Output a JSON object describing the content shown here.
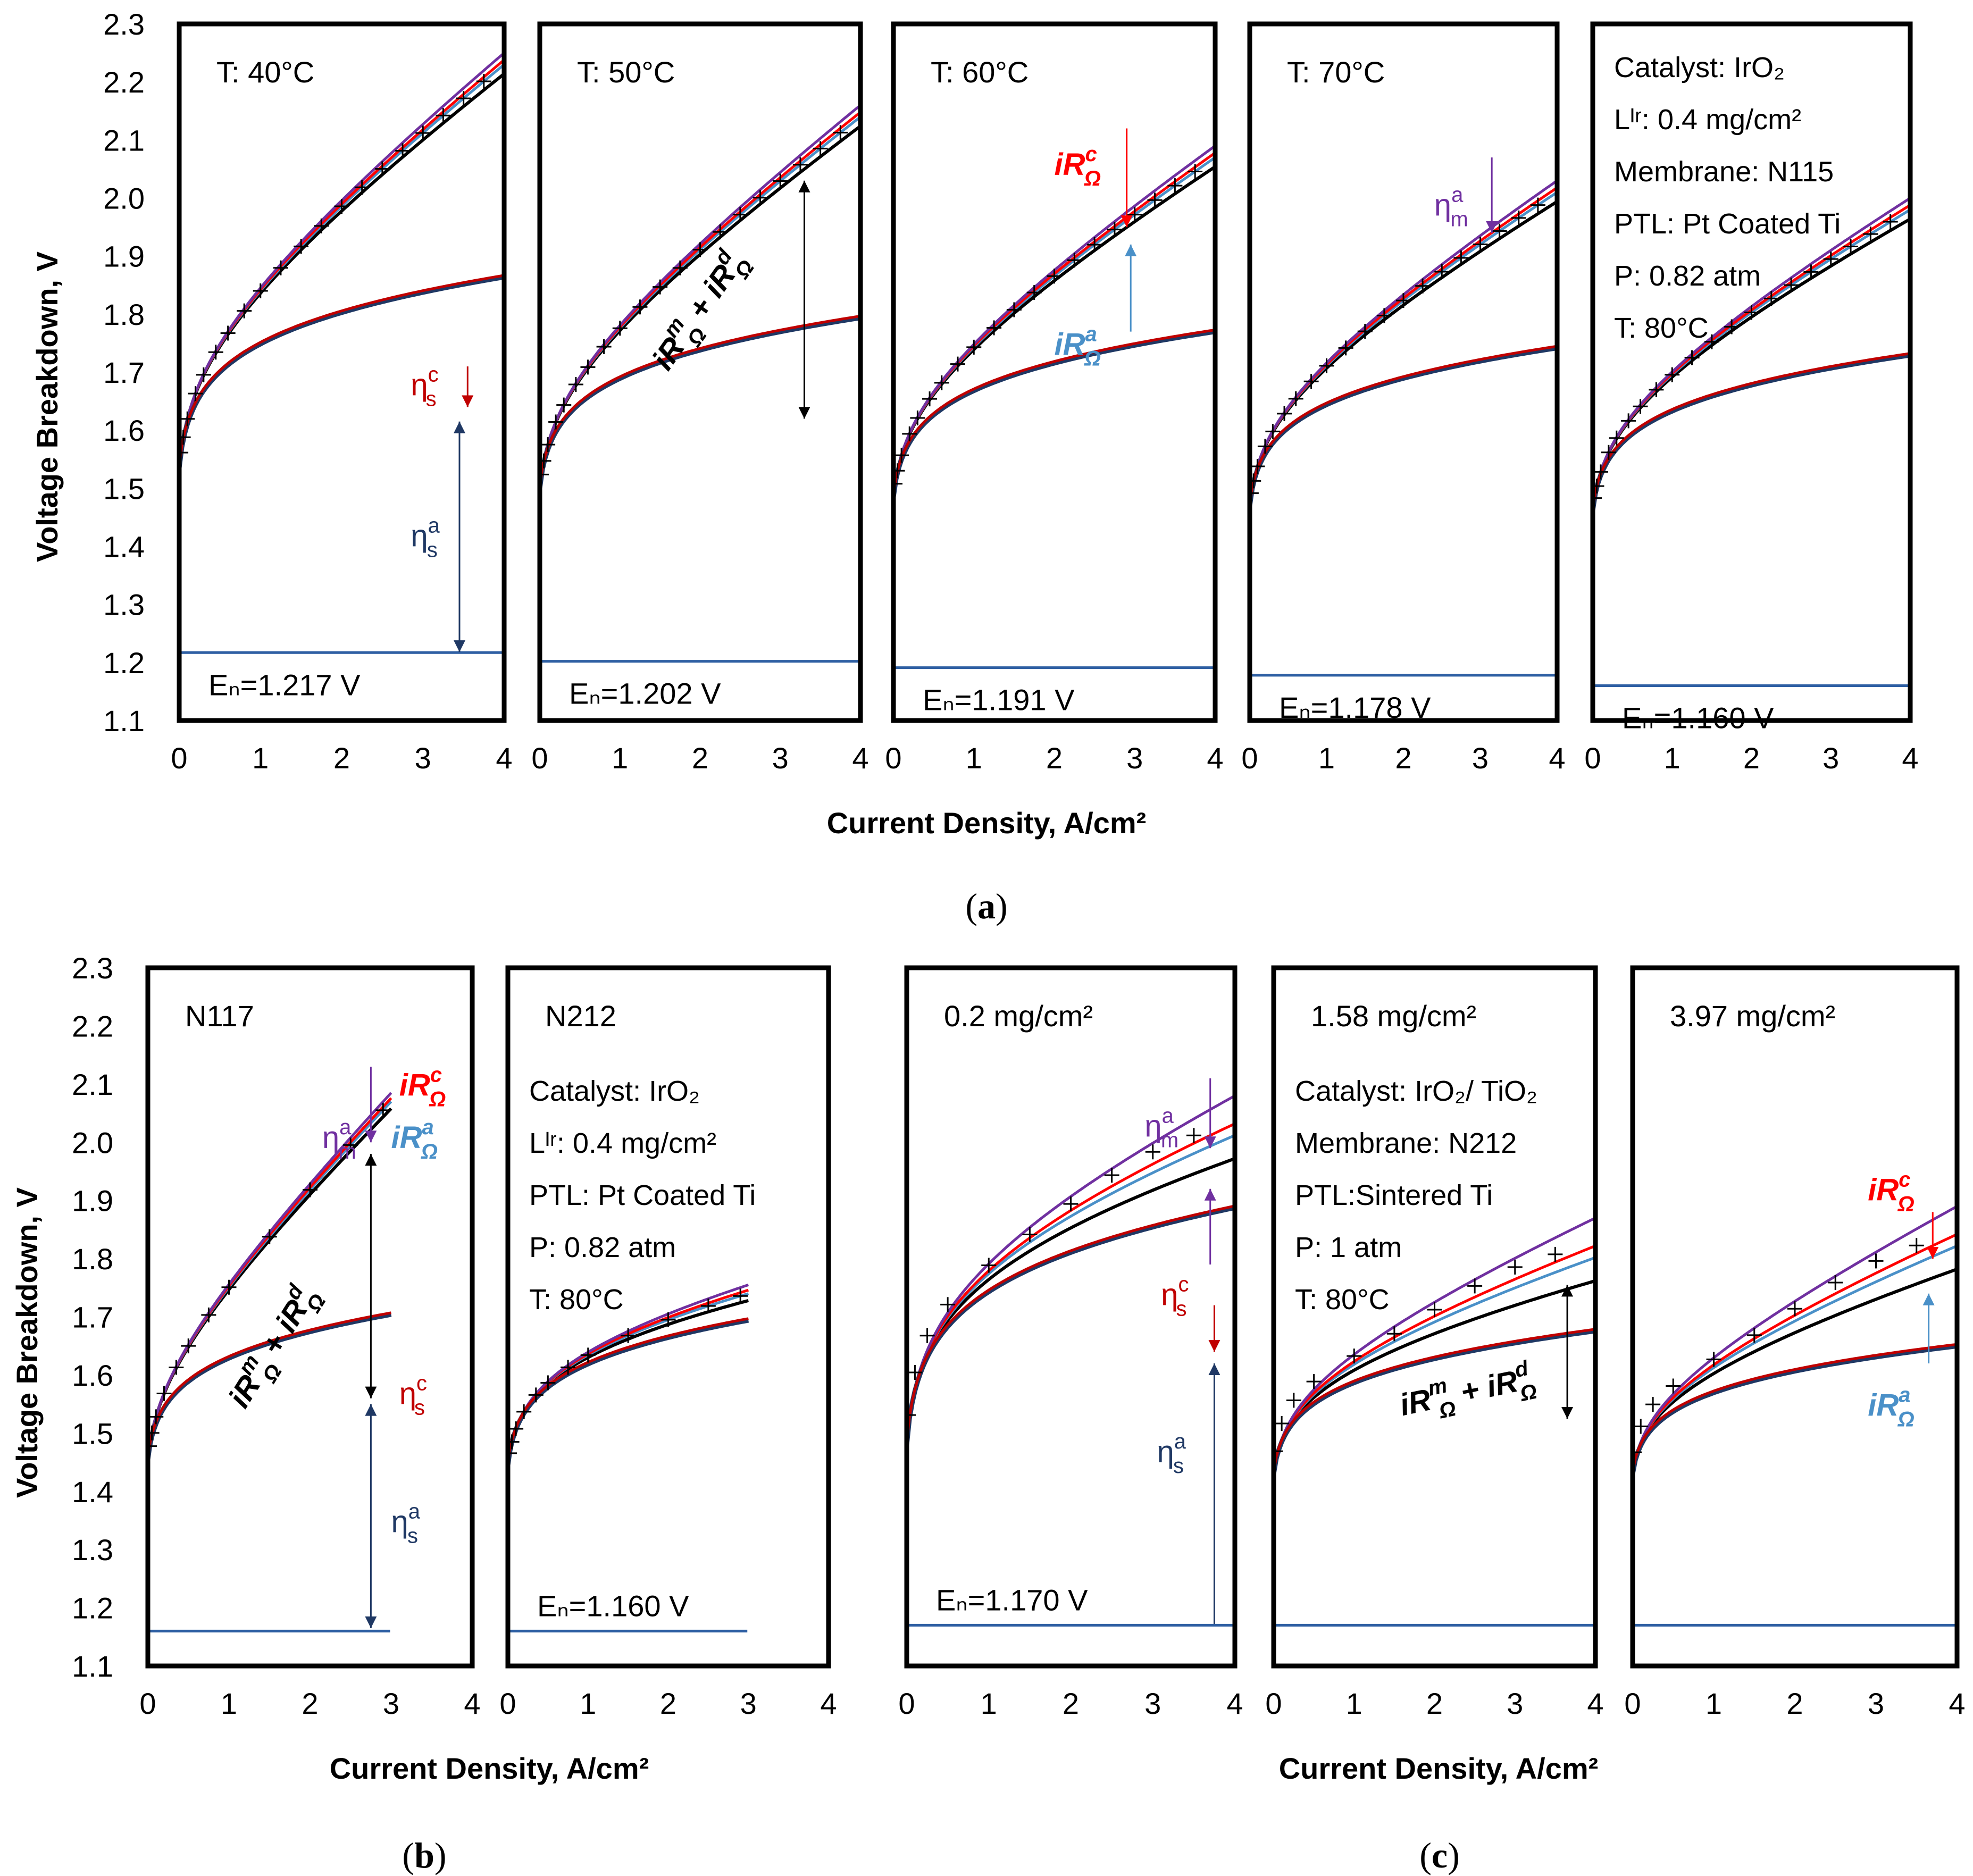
{
  "figure": {
    "ylabel": "Voltage Breakdown, V",
    "xlabel": "Current Density, A/cm²",
    "captions": [
      {
        "open": "(",
        "letter": "a",
        "close": ")"
      },
      {
        "open": "(",
        "letter": "b",
        "close": ")"
      },
      {
        "open": "(",
        "letter": "c",
        "close": ")"
      }
    ],
    "legend_colors": {
      "measured": "#000000",
      "eta_s_a": "#1f3864",
      "eta_s_c": "#c00000",
      "iR_a": "#4a90c8",
      "iR_c": "#ff0000",
      "eta_m_a": "#7030a0",
      "full_model": "#000000",
      "nernst": "#2e5fa3"
    }
  },
  "chart_data": [
    {
      "type": "line",
      "row": "a",
      "title": "T: 40°C",
      "xlim": [
        0,
        4
      ],
      "ylim": [
        1.1,
        2.3
      ],
      "xticks": [
        "0",
        "1",
        "2",
        "3",
        "4"
      ],
      "yticks": [
        "1.1",
        "1.2",
        "1.3",
        "1.4",
        "1.5",
        "1.6",
        "1.7",
        "1.8",
        "1.9",
        "2.0",
        "2.1",
        "2.2",
        "2.3"
      ],
      "EN": 1.217,
      "en_label": "Eₙ=1.217 V",
      "kin": {
        "v0": 1.535,
        "a": 0.058,
        "b": 0.037
      },
      "top": {
        "v": 2.23,
        "xend": 4.0
      },
      "measured_x": [
        0.02,
        0.05,
        0.1,
        0.2,
        0.3,
        0.45,
        0.6,
        0.8,
        1.0,
        1.25,
        1.5,
        1.75,
        2.0,
        2.25,
        2.5,
        2.75,
        3.0,
        3.25,
        3.5,
        3.75
      ],
      "info": [],
      "annotations": [
        {
          "label": "η",
          "sub": "s",
          "sup": "c",
          "color": "#c00000"
        },
        {
          "label": "η",
          "sub": "s",
          "sup": "a",
          "color": "#1f3864"
        }
      ]
    },
    {
      "type": "line",
      "row": "a",
      "title": "T: 50°C",
      "xlim": [
        0,
        4
      ],
      "ylim": [
        1.1,
        2.3
      ],
      "xticks": [
        "0",
        "1",
        "2",
        "3",
        "4"
      ],
      "yticks": [
        "1.1",
        "1.2",
        "1.3",
        "1.4",
        "1.5",
        "1.6",
        "1.7",
        "1.8",
        "1.9",
        "2.0",
        "2.1",
        "2.2",
        "2.3"
      ],
      "EN": 1.202,
      "en_label": "Eₙ=1.202 V",
      "kin": {
        "v0": 1.5,
        "a": 0.05,
        "b": 0.037
      },
      "top": {
        "v": 2.14,
        "xend": 4.0
      },
      "measured_x": [
        0.02,
        0.05,
        0.1,
        0.2,
        0.3,
        0.45,
        0.6,
        0.8,
        1.0,
        1.25,
        1.5,
        1.75,
        2.0,
        2.25,
        2.5,
        2.75,
        3.0,
        3.25,
        3.5,
        3.75
      ],
      "info": [],
      "annotations": [
        {
          "label": "iR",
          "sub": "Ω",
          "sup": "m",
          "plus": " + iR",
          "sub2": "Ω",
          "sup2": "d",
          "color": "#000000"
        }
      ]
    },
    {
      "type": "line",
      "row": "a",
      "title": "T: 60°C",
      "xlim": [
        0,
        4
      ],
      "ylim": [
        1.1,
        2.3
      ],
      "xticks": [
        "0",
        "1",
        "2",
        "3",
        "4"
      ],
      "yticks": [
        "1.1",
        "1.2",
        "1.3",
        "1.4",
        "1.5",
        "1.6",
        "1.7",
        "1.8",
        "1.9",
        "2.0",
        "2.1",
        "2.2",
        "2.3"
      ],
      "EN": 1.191,
      "en_label": "Eₙ=1.191 V",
      "kin": {
        "v0": 1.485,
        "a": 0.048,
        "b": 0.037
      },
      "top": {
        "v": 2.07,
        "xend": 4.0
      },
      "measured_x": [
        0.02,
        0.05,
        0.1,
        0.2,
        0.3,
        0.45,
        0.6,
        0.8,
        1.0,
        1.25,
        1.5,
        1.75,
        2.0,
        2.25,
        2.5,
        2.75,
        3.0,
        3.25,
        3.5,
        3.75
      ],
      "info": [],
      "annotations": [
        {
          "label": "iR",
          "sub": "Ω",
          "sup": "c",
          "color": "#ff0000"
        },
        {
          "label": "iR",
          "sub": "Ω",
          "sup": "a",
          "color": "#4a90c8"
        }
      ]
    },
    {
      "type": "line",
      "row": "a",
      "title": "T: 70°C",
      "xlim": [
        0,
        4
      ],
      "ylim": [
        1.1,
        2.3
      ],
      "xticks": [
        "0",
        "1",
        "2",
        "3",
        "4"
      ],
      "yticks": [
        "1.1",
        "1.2",
        "1.3",
        "1.4",
        "1.5",
        "1.6",
        "1.7",
        "1.8",
        "1.9",
        "2.0",
        "2.1",
        "2.2",
        "2.3"
      ],
      "EN": 1.178,
      "en_label": "Eₙ=1.178 V",
      "kin": {
        "v0": 1.47,
        "a": 0.045,
        "b": 0.037
      },
      "top": {
        "v": 2.01,
        "xend": 4.0
      },
      "measured_x": [
        0.02,
        0.05,
        0.1,
        0.2,
        0.3,
        0.45,
        0.6,
        0.8,
        1.0,
        1.25,
        1.5,
        1.75,
        2.0,
        2.25,
        2.5,
        2.75,
        3.0,
        3.25,
        3.5,
        3.75
      ],
      "info": [],
      "annotations": [
        {
          "label": "η",
          "sub": "m",
          "sup": "a",
          "color": "#7030a0"
        }
      ]
    },
    {
      "type": "line",
      "row": "a",
      "title": "",
      "xlim": [
        0,
        4
      ],
      "ylim": [
        1.1,
        2.3
      ],
      "xticks": [
        "0",
        "1",
        "2",
        "3",
        "4"
      ],
      "yticks": [
        "1.1",
        "1.2",
        "1.3",
        "1.4",
        "1.5",
        "1.6",
        "1.7",
        "1.8",
        "1.9",
        "2.0",
        "2.1",
        "2.2",
        "2.3"
      ],
      "EN": 1.16,
      "en_label": "Eₙ=1.160 V",
      "kin": {
        "v0": 1.462,
        "a": 0.044,
        "b": 0.037
      },
      "top": {
        "v": 1.98,
        "xend": 4.0
      },
      "measured_x": [
        0.02,
        0.05,
        0.1,
        0.2,
        0.3,
        0.45,
        0.6,
        0.8,
        1.0,
        1.25,
        1.5,
        1.75,
        2.0,
        2.25,
        2.5,
        2.75,
        3.0,
        3.25,
        3.5,
        3.75
      ],
      "info": [
        "Catalyst:  IrO₂",
        "Lᴵʳ:  0.4 mg/cm²",
        "Membrane:  N115",
        "PTL: Pt Coated Ti",
        "P: 0.82 atm",
        "T: 80°C"
      ],
      "annotations": []
    },
    {
      "type": "line",
      "row": "b",
      "title": "N117",
      "xlim": [
        0,
        4
      ],
      "ylim": [
        1.1,
        2.3
      ],
      "xticks": [
        "0",
        "1",
        "2",
        "3",
        "4"
      ],
      "yticks": [
        "1.1",
        "1.2",
        "1.3",
        "1.4",
        "1.5",
        "1.6",
        "1.7",
        "1.8",
        "1.9",
        "2.0",
        "2.1",
        "2.2",
        "2.3"
      ],
      "EN": 1.16,
      "en_label": "",
      "kin": {
        "v0": 1.455,
        "a": 0.045,
        "b": 0.037
      },
      "top": {
        "v": 2.07,
        "xend": 3.0
      },
      "measured_x": [
        0.02,
        0.05,
        0.1,
        0.2,
        0.35,
        0.5,
        0.75,
        1.0,
        1.5,
        2.0,
        2.5,
        2.9
      ],
      "info": [],
      "annotations": [
        {
          "label": "η",
          "sub": "m",
          "sup": "a",
          "color": "#7030a0"
        },
        {
          "label": "iR",
          "sub": "Ω",
          "sup": "c",
          "color": "#ff0000"
        },
        {
          "label": "iR",
          "sub": "Ω",
          "sup": "a",
          "color": "#4a90c8"
        },
        {
          "label": "iR",
          "sub": "Ω",
          "sup": "m",
          "plus": " + iR",
          "sub2": "Ω",
          "sup2": "d",
          "color": "#000000"
        },
        {
          "label": "η",
          "sub": "s",
          "sup": "c",
          "color": "#c00000"
        },
        {
          "label": "η",
          "sub": "s",
          "sup": "a",
          "color": "#1f3864"
        }
      ]
    },
    {
      "type": "line",
      "row": "b",
      "title": "N212",
      "xlim": [
        0,
        4
      ],
      "ylim": [
        1.1,
        2.3
      ],
      "xticks": [
        "0",
        "1",
        "2",
        "3",
        "4"
      ],
      "yticks": [
        "1.1",
        "1.2",
        "1.3",
        "1.4",
        "1.5",
        "1.6",
        "1.7",
        "1.8",
        "1.9",
        "2.0",
        "2.1",
        "2.2",
        "2.3"
      ],
      "EN": 1.16,
      "en_label": "Eₙ=1.160 V",
      "kin": {
        "v0": 1.445,
        "a": 0.045,
        "b": 0.037
      },
      "top": {
        "v": 1.74,
        "xend": 3.0
      },
      "measured_x": [
        0.02,
        0.05,
        0.1,
        0.2,
        0.35,
        0.5,
        0.75,
        1.0,
        1.5,
        2.0,
        2.5,
        2.9
      ],
      "info": [
        "Catalyst:  IrO₂",
        "Lᴵʳ:  0.4 mg/cm²",
        "PTL: Pt Coated Ti",
        "P: 0.82 atm",
        "T: 80°C"
      ],
      "annotations": []
    },
    {
      "type": "line",
      "row": "c",
      "title": "0.2 mg/cm²",
      "xlim": [
        0,
        4
      ],
      "ylim": [
        1.1,
        2.3
      ],
      "xticks": [
        "0",
        "1",
        "2",
        "3",
        "4"
      ],
      "yticks": [
        "1.1",
        "1.2",
        "1.3",
        "1.4",
        "1.5",
        "1.6",
        "1.7",
        "1.8",
        "1.9",
        "2.0",
        "2.1",
        "2.2",
        "2.3"
      ],
      "EN": 1.17,
      "en_label": "Eₙ=1.170 V",
      "kin": {
        "v0": 1.48,
        "a": 0.07,
        "b": 0.05
      },
      "top": {
        "v": 2.02,
        "xend": 4.0
      },
      "measured_x": [
        0.02,
        0.1,
        0.25,
        0.5,
        1.0,
        1.5,
        2.0,
        2.5,
        3.0,
        3.5
      ],
      "info": [],
      "annotations": [
        {
          "label": "η",
          "sub": "m",
          "sup": "a",
          "color": "#7030a0"
        },
        {
          "label": "η",
          "sub": "s",
          "sup": "c",
          "color": "#c00000"
        },
        {
          "label": "η",
          "sub": "s",
          "sup": "a",
          "color": "#1f3864"
        }
      ]
    },
    {
      "type": "line",
      "row": "c",
      "title": "1.58 mg/cm²",
      "xlim": [
        0,
        4
      ],
      "ylim": [
        1.1,
        2.3
      ],
      "xticks": [
        "0",
        "1",
        "2",
        "3",
        "4"
      ],
      "yticks": [
        "1.1",
        "1.2",
        "1.3",
        "1.4",
        "1.5",
        "1.6",
        "1.7",
        "1.8",
        "1.9",
        "2.0",
        "2.1",
        "2.2",
        "2.3"
      ],
      "EN": 1.17,
      "en_label": "",
      "kin": {
        "v0": 1.43,
        "a": 0.04,
        "b": 0.035
      },
      "top": {
        "v": 1.81,
        "xend": 4.0
      },
      "measured_x": [
        0.02,
        0.1,
        0.25,
        0.5,
        1.0,
        1.5,
        2.0,
        2.5,
        3.0,
        3.5
      ],
      "info": [
        "Catalyst:  IrO₂/ TiO₂",
        "Membrane: N212",
        "PTL:Sintered Ti",
        "P: 1 atm",
        "T: 80°C"
      ],
      "annotations": [
        {
          "label": "iR",
          "sub": "Ω",
          "sup": "m",
          "plus": " + iR",
          "sub2": "Ω",
          "sup2": "d",
          "color": "#000000"
        }
      ]
    },
    {
      "type": "line",
      "row": "c",
      "title": "3.97 mg/cm²",
      "xlim": [
        0,
        4
      ],
      "ylim": [
        1.1,
        2.3
      ],
      "xticks": [
        "0",
        "1",
        "2",
        "3",
        "4"
      ],
      "yticks": [
        "1.1",
        "1.2",
        "1.3",
        "1.4",
        "1.5",
        "1.6",
        "1.7",
        "1.8",
        "1.9",
        "2.0",
        "2.1",
        "2.2",
        "2.3"
      ],
      "EN": 1.17,
      "en_label": "",
      "kin": {
        "v0": 1.43,
        "a": 0.035,
        "b": 0.033
      },
      "top": {
        "v": 1.83,
        "xend": 4.0
      },
      "measured_x": [
        0.02,
        0.1,
        0.25,
        0.5,
        1.0,
        1.5,
        2.0,
        2.5,
        3.0,
        3.5
      ],
      "info": [],
      "annotations": [
        {
          "label": "iR",
          "sub": "Ω",
          "sup": "c",
          "color": "#ff0000"
        },
        {
          "label": "iR",
          "sub": "Ω",
          "sup": "a",
          "color": "#4a90c8"
        }
      ]
    }
  ]
}
